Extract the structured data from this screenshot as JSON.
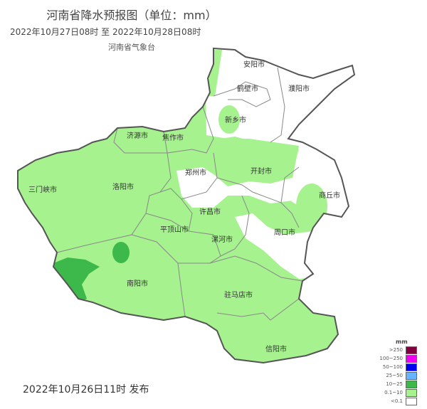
{
  "header": {
    "title": "河南省降水预报图（单位：mm）",
    "period": "2022年10月27日08时  至  2022年10月28日08时",
    "issuer": "河南省气象台"
  },
  "footer": {
    "release": "2022年10月26日11时 发布"
  },
  "cities": [
    "安阳市",
    "鹤壁市",
    "濮阳市",
    "新乡市",
    "焦作市",
    "济源市",
    "郑州市",
    "开封市",
    "三门峡市",
    "洛阳市",
    "商丘市",
    "许昌市",
    "平顶山市",
    "漯河市",
    "周口市",
    "南阳市",
    "驻马店市",
    "信阳市"
  ],
  "legend": {
    "unit": "mm",
    "items": [
      {
        "label": ">250",
        "color": "#800040"
      },
      {
        "label": "100~250",
        "color": "#f000f0"
      },
      {
        "label": "50~100",
        "color": "#0000f0"
      },
      {
        "label": "25~50",
        "color": "#66b3ff"
      },
      {
        "label": "10~25",
        "color": "#3cb94a"
      },
      {
        "label": "0.1~10",
        "color": "#a6f28f"
      },
      {
        "label": "<0.1",
        "color": "#ffffff"
      }
    ]
  }
}
